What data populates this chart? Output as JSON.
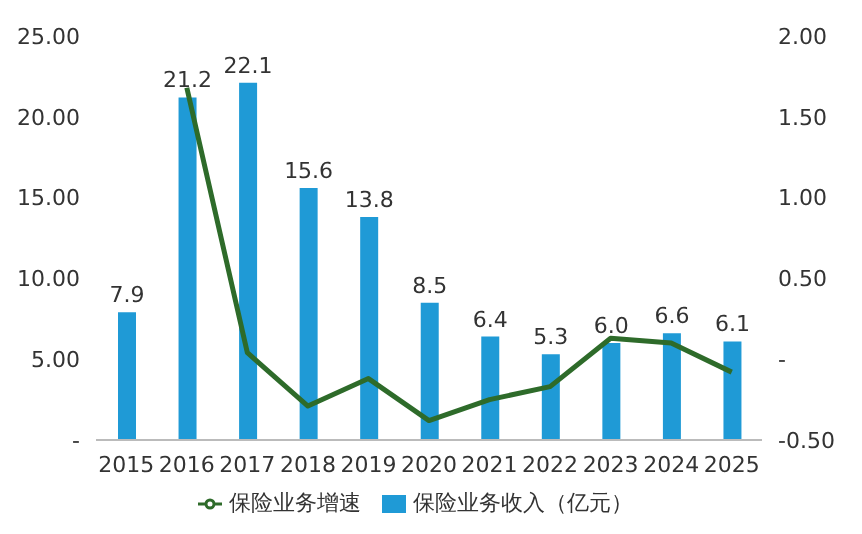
{
  "chart_data": {
    "type": "bar",
    "categories": [
      "2015",
      "2016",
      "2017",
      "2018",
      "2019",
      "2020",
      "2021",
      "2022",
      "2023",
      "2024",
      "2025"
    ],
    "series": [
      {
        "name": "保险业务收入（亿元）",
        "color": "#1f9ad6",
        "values": [
          7.9,
          21.2,
          22.1,
          15.6,
          13.8,
          8.5,
          6.4,
          5.3,
          6.0,
          6.6,
          6.1
        ],
        "value_labels": [
          "7.9",
          "21.2",
          "22.1",
          "15.6",
          "13.8",
          "8.5",
          "6.4",
          "5.3",
          "6.0",
          "6.6",
          "6.1"
        ]
      },
      {
        "name": "保险业务增速",
        "type": "line",
        "axis": "y2",
        "color": "#2e6b2a",
        "values": [
          null,
          1.68,
          0.04,
          -0.29,
          -0.12,
          -0.38,
          -0.25,
          -0.17,
          0.13,
          0.1,
          -0.08
        ]
      }
    ],
    "ylim": [
      0,
      25
    ],
    "yticks": [
      {
        "value": 0,
        "label": "-"
      },
      {
        "value": 5,
        "label": "5.00"
      },
      {
        "value": 10,
        "label": "10.00"
      },
      {
        "value": 15,
        "label": "15.00"
      },
      {
        "value": 20,
        "label": "20.00"
      },
      {
        "value": 25,
        "label": "25.00"
      }
    ],
    "y2lim": [
      -0.5,
      2
    ],
    "y2ticks": [
      {
        "value": -0.5,
        "label": "-0.50"
      },
      {
        "value": 0,
        "label": "-"
      },
      {
        "value": 0.5,
        "label": "0.50"
      },
      {
        "value": 1,
        "label": "1.00"
      },
      {
        "value": 1.5,
        "label": "1.50"
      },
      {
        "value": 2,
        "label": "2.00"
      }
    ],
    "grid": false,
    "legend": "bottom",
    "marker": "none",
    "line_style": "solid"
  }
}
